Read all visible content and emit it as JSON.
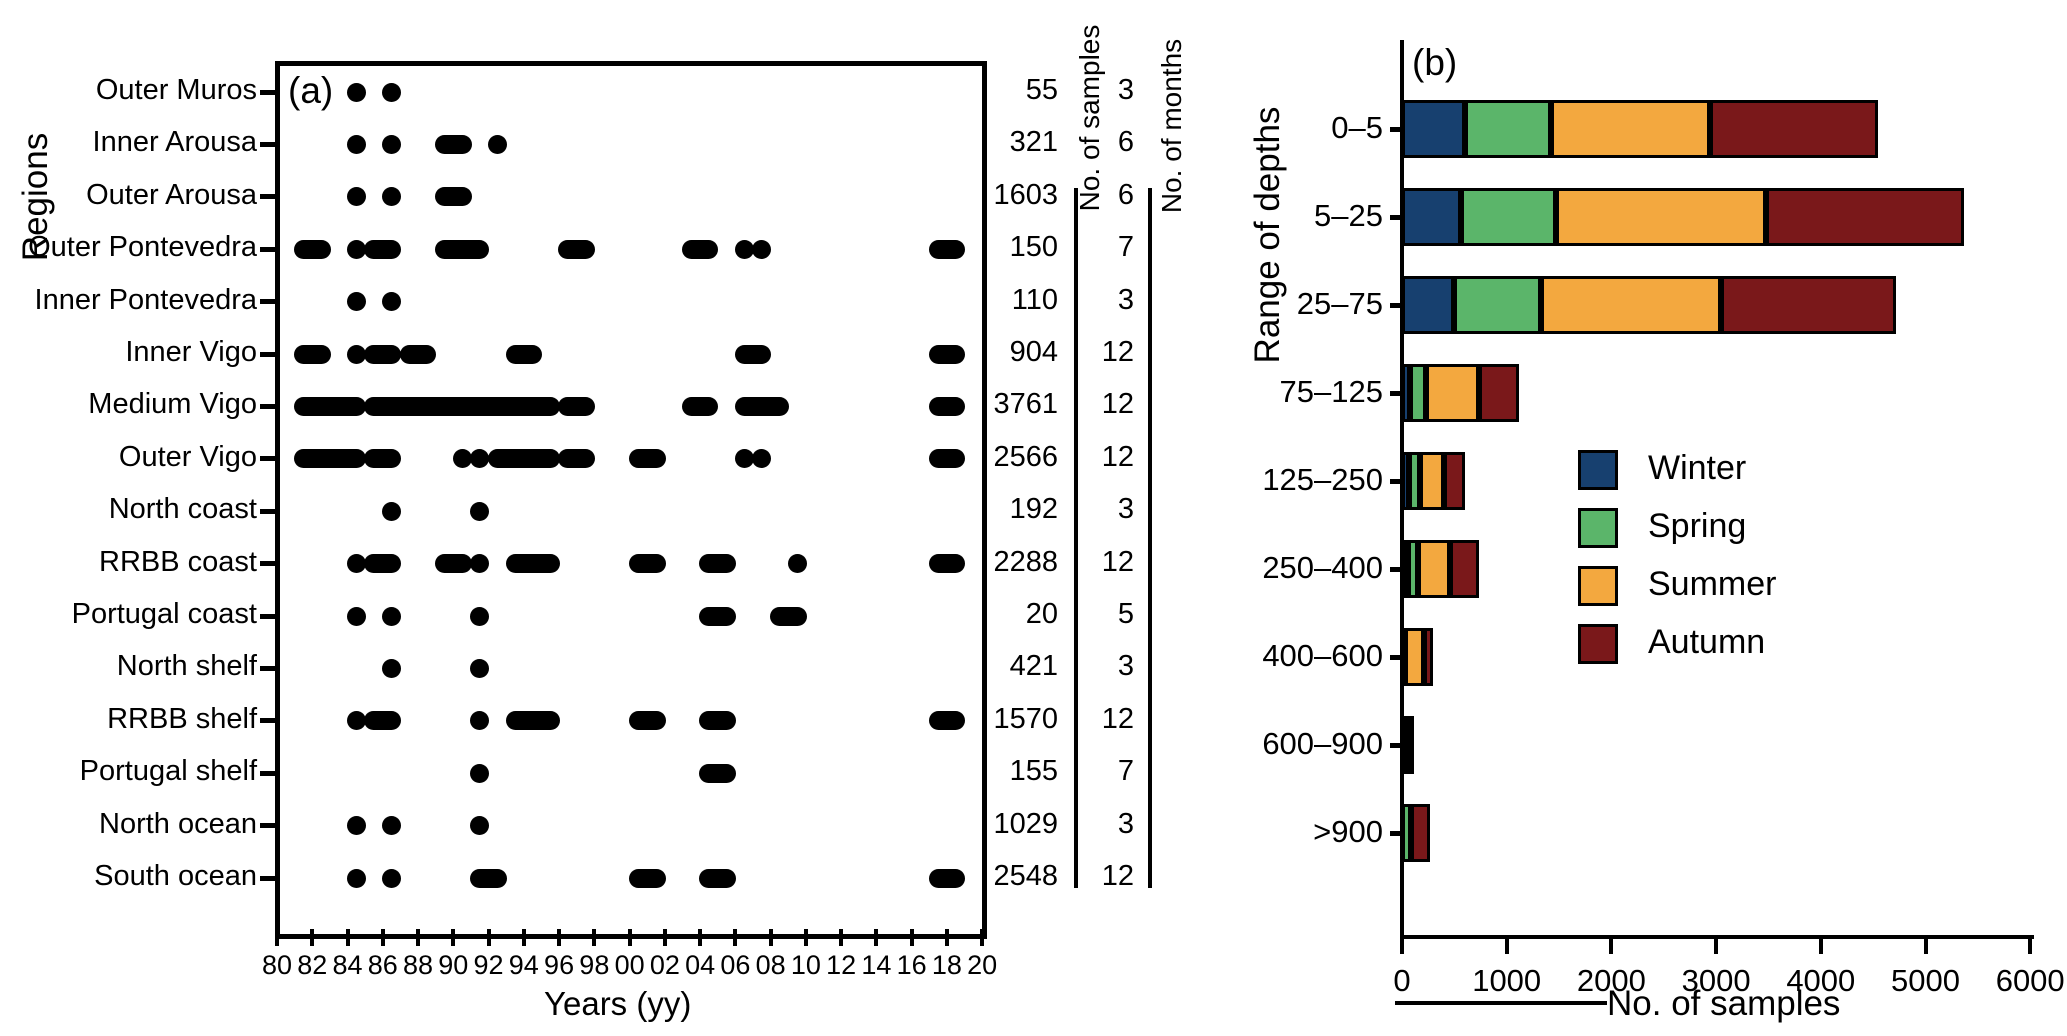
{
  "colors": {
    "foreground": "#000000",
    "background": "#ffffff",
    "winter": "#17406f",
    "spring": "#5bb56a",
    "summer": "#f3a83f",
    "autumn": "#7a181a"
  },
  "chart_data": [
    {
      "type": "scatter",
      "title": "(a)",
      "xlabel": "Years (yy)",
      "ylabel": "Regions",
      "x_tick_labels": [
        "80",
        "82",
        "84",
        "86",
        "88",
        "90",
        "92",
        "94",
        "96",
        "98",
        "00",
        "02",
        "04",
        "06",
        "08",
        "10",
        "12",
        "14",
        "16",
        "18",
        "20"
      ],
      "x_range_years": [
        1980,
        2020
      ],
      "columns": {
        "samples_header": "No. of samples",
        "months_header": "No. of months"
      },
      "rows": [
        {
          "region": "Outer Muros",
          "samples": "55",
          "months": "3",
          "year_spans": [
            [
              1984,
              1984
            ],
            [
              1986,
              1986
            ]
          ]
        },
        {
          "region": "Inner Arousa",
          "samples": "321",
          "months": "6",
          "year_spans": [
            [
              1984,
              1984
            ],
            [
              1986,
              1986
            ],
            [
              1989,
              1990
            ],
            [
              1992,
              1992
            ]
          ]
        },
        {
          "region": "Outer Arousa",
          "samples": "1603",
          "months": "6",
          "year_spans": [
            [
              1984,
              1984
            ],
            [
              1986,
              1986
            ],
            [
              1989,
              1990
            ]
          ]
        },
        {
          "region": "Outer Pontevedra",
          "samples": "150",
          "months": "7",
          "year_spans": [
            [
              1981,
              1982
            ],
            [
              1984,
              1984
            ],
            [
              1985,
              1986
            ],
            [
              1989,
              1991
            ],
            [
              1996,
              1997
            ],
            [
              2003,
              2004
            ],
            [
              2006,
              2006
            ],
            [
              2007,
              2007
            ],
            [
              2017,
              2018
            ]
          ]
        },
        {
          "region": "Inner Pontevedra",
          "samples": "110",
          "months": "3",
          "year_spans": [
            [
              1984,
              1984
            ],
            [
              1986,
              1986
            ]
          ]
        },
        {
          "region": "Inner Vigo",
          "samples": "904",
          "months": "12",
          "year_spans": [
            [
              1981,
              1982
            ],
            [
              1984,
              1984
            ],
            [
              1985,
              1986
            ],
            [
              1987,
              1988
            ],
            [
              1993,
              1994
            ],
            [
              2006,
              2007
            ],
            [
              2017,
              2018
            ]
          ]
        },
        {
          "region": "Medium Vigo",
          "samples": "3761",
          "months": "12",
          "year_spans": [
            [
              1981,
              1984
            ],
            [
              1985,
              1995
            ],
            [
              1996,
              1997
            ],
            [
              2003,
              2004
            ],
            [
              2006,
              2008
            ],
            [
              2017,
              2018
            ]
          ]
        },
        {
          "region": "Outer Vigo",
          "samples": "2566",
          "months": "12",
          "year_spans": [
            [
              1981,
              1984
            ],
            [
              1985,
              1986
            ],
            [
              1990,
              1990
            ],
            [
              1991,
              1991
            ],
            [
              1992,
              1995
            ],
            [
              1996,
              1997
            ],
            [
              2000,
              2001
            ],
            [
              2006,
              2006
            ],
            [
              2007,
              2007
            ],
            [
              2017,
              2018
            ]
          ]
        },
        {
          "region": "North coast",
          "samples": "192",
          "months": "3",
          "year_spans": [
            [
              1986,
              1986
            ],
            [
              1991,
              1991
            ]
          ]
        },
        {
          "region": "RRBB coast",
          "samples": "2288",
          "months": "12",
          "year_spans": [
            [
              1984,
              1984
            ],
            [
              1985,
              1986
            ],
            [
              1989,
              1990
            ],
            [
              1991,
              1991
            ],
            [
              1993,
              1995
            ],
            [
              2000,
              2001
            ],
            [
              2004,
              2005
            ],
            [
              2009,
              2009
            ],
            [
              2017,
              2018
            ]
          ]
        },
        {
          "region": "Portugal coast",
          "samples": "20",
          "months": "5",
          "year_spans": [
            [
              1984,
              1984
            ],
            [
              1986,
              1986
            ],
            [
              1991,
              1991
            ],
            [
              2004,
              2005
            ],
            [
              2008,
              2009
            ]
          ]
        },
        {
          "region": "North shelf",
          "samples": "421",
          "months": "3",
          "year_spans": [
            [
              1986,
              1986
            ],
            [
              1991,
              1991
            ]
          ]
        },
        {
          "region": "RRBB shelf",
          "samples": "1570",
          "months": "12",
          "year_spans": [
            [
              1984,
              1984
            ],
            [
              1985,
              1986
            ],
            [
              1991,
              1991
            ],
            [
              1993,
              1995
            ],
            [
              2000,
              2001
            ],
            [
              2004,
              2005
            ],
            [
              2017,
              2018
            ]
          ]
        },
        {
          "region": "Portugal shelf",
          "samples": "155",
          "months": "7",
          "year_spans": [
            [
              1991,
              1991
            ],
            [
              2004,
              2005
            ]
          ]
        },
        {
          "region": "North ocean",
          "samples": "1029",
          "months": "3",
          "year_spans": [
            [
              1984,
              1984
            ],
            [
              1986,
              1986
            ],
            [
              1991,
              1991
            ]
          ]
        },
        {
          "region": "South ocean",
          "samples": "2548",
          "months": "12",
          "year_spans": [
            [
              1984,
              1984
            ],
            [
              1986,
              1986
            ],
            [
              1991,
              1992
            ],
            [
              2000,
              2001
            ],
            [
              2004,
              2005
            ],
            [
              2017,
              2018
            ]
          ]
        }
      ]
    },
    {
      "type": "bar",
      "subtype": "stacked_horizontal",
      "title": "(b)",
      "xlabel": "No. of samples",
      "ylabel": "Range of depths",
      "categories": [
        "0–5",
        "5–25",
        "25–75",
        "75–125",
        "125–250",
        "250–400",
        "400–600",
        "600–900",
        ">900"
      ],
      "series": [
        {
          "name": "Winter",
          "color": "#17406f",
          "values": [
            600,
            560,
            500,
            80,
            70,
            60,
            0,
            0,
            0
          ]
        },
        {
          "name": "Spring",
          "color": "#5bb56a",
          "values": [
            820,
            910,
            830,
            150,
            100,
            90,
            30,
            60,
            90
          ]
        },
        {
          "name": "Summer",
          "color": "#f3a83f",
          "values": [
            1520,
            2010,
            1720,
            510,
            230,
            310,
            180,
            0,
            0
          ]
        },
        {
          "name": "Autumn",
          "color": "#7a181a",
          "values": [
            1610,
            1890,
            1670,
            380,
            200,
            280,
            90,
            40,
            180
          ]
        }
      ],
      "xlim": [
        0,
        6000
      ],
      "x_ticks": [
        "0",
        "1000",
        "2000",
        "3000",
        "4000",
        "5000",
        "6000"
      ],
      "grid": false,
      "legend_position": "center-right"
    }
  ]
}
